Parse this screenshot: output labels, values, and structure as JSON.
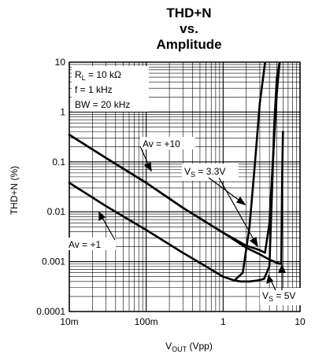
{
  "chart_data": {
    "type": "line",
    "title": [
      "THD+N",
      "vs.",
      "Amplitude"
    ],
    "xlabel": {
      "main": "V",
      "sub": "OUT",
      "tail": " (Vpp)"
    },
    "ylabel": "THD+N (%)",
    "xscale": "log",
    "yscale": "log",
    "xlim": [
      0.01,
      10
    ],
    "ylim": [
      0.0001,
      10
    ],
    "grid": true,
    "x_ticks": [
      {
        "value": 0.01,
        "label": "10m"
      },
      {
        "value": 0.1,
        "label": "100m"
      },
      {
        "value": 1,
        "label": "1"
      },
      {
        "value": 10,
        "label": "10"
      }
    ],
    "y_ticks": [
      {
        "value": 0.0001,
        "label": "0.0001"
      },
      {
        "value": 0.001,
        "label": "0.001"
      },
      {
        "value": 0.01,
        "label": "0.01"
      },
      {
        "value": 0.1,
        "label": "0.1"
      },
      {
        "value": 1,
        "label": "1"
      },
      {
        "value": 10,
        "label": "10"
      }
    ],
    "conditions": {
      "rl": {
        "main": "R",
        "sub": "L",
        "tail": " = 10 kΩ"
      },
      "f": "f = 1 kHz",
      "bw": "BW = 20 kHz"
    },
    "series": [
      {
        "label": "Av = +10, V_S = 3.3V",
        "points": [
          [
            0.01,
            0.35
          ],
          [
            0.03,
            0.12
          ],
          [
            0.1,
            0.038
          ],
          [
            0.3,
            0.012
          ],
          [
            1,
            0.0038
          ],
          [
            2,
            0.0021
          ],
          [
            3,
            0.0017
          ],
          [
            3.5,
            0.0015
          ],
          [
            4,
            0.0058
          ],
          [
            4.5,
            0.15
          ],
          [
            5,
            2.5
          ],
          [
            5.4,
            9.5
          ]
        ]
      },
      {
        "label": "Av = +10, V_S = 5V",
        "points": [
          [
            0.01,
            0.35
          ],
          [
            0.03,
            0.12
          ],
          [
            0.1,
            0.038
          ],
          [
            0.3,
            0.012
          ],
          [
            1,
            0.0038
          ],
          [
            2,
            0.0019
          ],
          [
            3,
            0.0014
          ],
          [
            4,
            0.0011
          ],
          [
            5,
            0.00095
          ],
          [
            5.5,
            0.0009
          ],
          [
            5.7,
            0.0009
          ],
          [
            5.85,
            0.05
          ],
          [
            6,
            0.4
          ]
        ]
      },
      {
        "label": "Av = +1, V_S = 3.3V",
        "points": [
          [
            0.01,
            0.038
          ],
          [
            0.03,
            0.013
          ],
          [
            0.1,
            0.0043
          ],
          [
            0.3,
            0.0015
          ],
          [
            0.6,
            0.0008
          ],
          [
            1,
            0.0005
          ],
          [
            1.4,
            0.00042
          ],
          [
            1.8,
            0.0006
          ],
          [
            2.2,
            0.005
          ],
          [
            2.6,
            0.1
          ],
          [
            3.0,
            1.5
          ],
          [
            3.5,
            9.5
          ]
        ]
      },
      {
        "label": "Av = +1, V_S = 5V",
        "points": [
          [
            1.4,
            0.00042
          ],
          [
            1.7,
            0.0004
          ],
          [
            2.2,
            0.0004
          ],
          [
            2.8,
            0.00042
          ],
          [
            3.4,
            0.00045
          ],
          [
            4,
            0.0008
          ],
          [
            4.3,
            0.02
          ],
          [
            4.6,
            0.5
          ],
          [
            5.0,
            5
          ],
          [
            5.4,
            9.5
          ]
        ]
      }
    ],
    "annotations": {
      "av10": "Av = +10",
      "av1": "Av = +1",
      "vs33": {
        "main": "V",
        "sub": "S",
        "tail": " = 3.3V"
      },
      "vs5": {
        "main": "V",
        "sub": "S",
        "tail": " = 5V"
      }
    },
    "colors": {
      "line": "#000000",
      "grid": "#000000",
      "background": "#ffffff"
    }
  }
}
